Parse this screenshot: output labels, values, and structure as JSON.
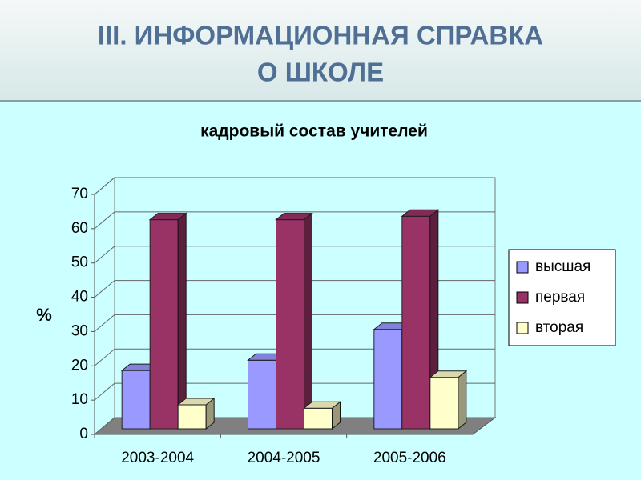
{
  "header": {
    "title_line1": "III. ИНФОРМАЦИОННАЯ СПРАВКА",
    "title_line2": "О ШКОЛЕ"
  },
  "chart_data": {
    "type": "bar3d",
    "title": "кадровый состав учителей",
    "y_label": "%",
    "categories": [
      "2003-2004",
      "2004-2005",
      "2005-2006"
    ],
    "series": [
      {
        "name": "высшая",
        "color": "#9999ff",
        "values": [
          17,
          20,
          29
        ]
      },
      {
        "name": "первая",
        "color": "#993366",
        "values": [
          61,
          61,
          62
        ]
      },
      {
        "name": "вторая",
        "color": "#ffffcc",
        "values": [
          7,
          6,
          15
        ]
      }
    ],
    "ylim": [
      0,
      70
    ],
    "yticks": [
      0,
      10,
      20,
      30,
      40,
      50,
      60,
      70
    ],
    "grid": true,
    "legend": "right"
  }
}
